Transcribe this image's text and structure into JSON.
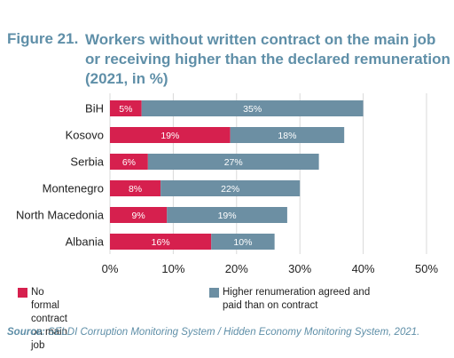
{
  "figure": {
    "label": "Figure 21.",
    "title": "Workers without written contract on the main job or receiving higher than the declared remuneration (2021, in %)"
  },
  "chart_data": {
    "type": "bar",
    "orientation": "horizontal",
    "stacked": true,
    "categories": [
      "BiH",
      "Kosovo",
      "Serbia",
      "Montenegro",
      "North Macedonia",
      "Albania"
    ],
    "series": [
      {
        "name": "No formal contract on main job",
        "color": "#d6204e",
        "values": [
          5,
          19,
          6,
          8,
          9,
          16
        ],
        "labels": [
          "5%",
          "19%",
          "6%",
          "8%",
          "9%",
          "16%"
        ]
      },
      {
        "name": "Higher renumeration agreed and paid than on contract",
        "color": "#6c8fa3",
        "values": [
          35,
          18,
          27,
          22,
          19,
          10
        ],
        "labels": [
          "35%",
          "18%",
          "27%",
          "22%",
          "19%",
          "10%"
        ]
      }
    ],
    "xlim": [
      0,
      50
    ],
    "xticks": [
      "0%",
      "10%",
      "20%",
      "30%",
      "40%",
      "50%"
    ],
    "grid": true,
    "legend_position": "bottom"
  },
  "legend": {
    "item1": "No formal contract on main job",
    "item2_line1": "Higher renumeration agreed and",
    "item2_line2": "paid than on contract"
  },
  "source": {
    "label": "Source:",
    "text": " SELDI Corruption Monitoring System / Hidden Economy Monitoring System, 2021."
  }
}
